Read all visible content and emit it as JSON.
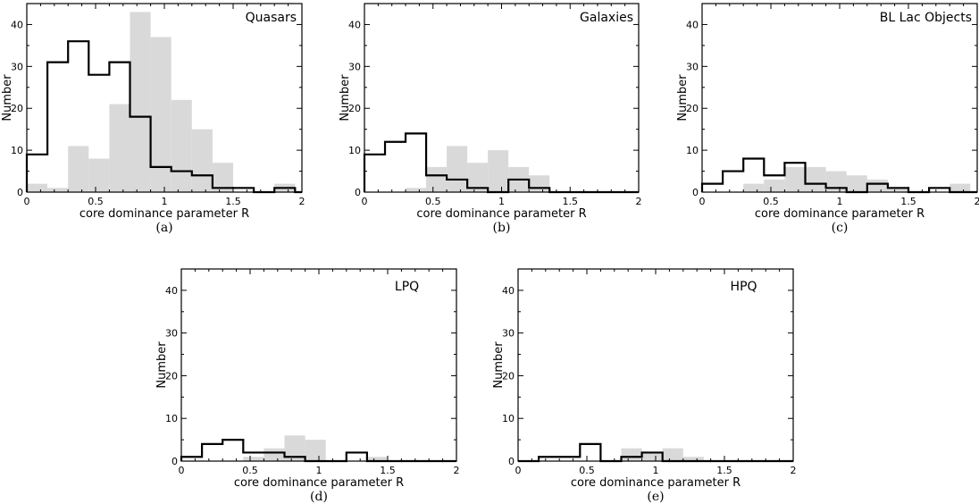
{
  "chart_data": [
    {
      "type": "bar",
      "title": "Quasars",
      "letter": "(a)",
      "xlabel": "core dominance parameter R",
      "ylabel": "Number",
      "xlim": [
        0,
        2
      ],
      "ylim": [
        0,
        45
      ],
      "xticks": [
        0,
        0.5,
        1,
        1.5,
        2
      ],
      "yticks": [
        0,
        10,
        20,
        30,
        40
      ],
      "bin_edges": [
        0,
        0.15,
        0.3,
        0.45,
        0.6,
        0.75,
        0.9,
        1.05,
        1.2,
        1.35,
        1.5,
        1.65,
        1.8,
        1.95,
        2
      ],
      "series": [
        {
          "style": "filled-gray",
          "values": [
            2,
            1,
            11,
            8,
            21,
            43,
            37,
            22,
            15,
            7,
            0,
            0,
            2,
            0
          ]
        },
        {
          "style": "black-step",
          "values": [
            9,
            31,
            36,
            28,
            31,
            18,
            6,
            5,
            4,
            1,
            1,
            0,
            1,
            0
          ]
        }
      ]
    },
    {
      "type": "bar",
      "title": "Galaxies",
      "letter": "(b)",
      "xlabel": "core dominance parameter R",
      "ylabel": "Number",
      "xlim": [
        0,
        2
      ],
      "ylim": [
        0,
        45
      ],
      "xticks": [
        0,
        0.5,
        1,
        1.5,
        2
      ],
      "yticks": [
        0,
        10,
        20,
        30,
        40
      ],
      "bin_edges": [
        0,
        0.15,
        0.3,
        0.45,
        0.6,
        0.75,
        0.9,
        1.05,
        1.2,
        1.35,
        1.5,
        1.65,
        1.8,
        1.95,
        2
      ],
      "series": [
        {
          "style": "filled-gray",
          "values": [
            0,
            0,
            1,
            6,
            11,
            7,
            10,
            6,
            4,
            0,
            0,
            0,
            0,
            0
          ]
        },
        {
          "style": "black-step",
          "values": [
            9,
            12,
            14,
            4,
            3,
            1,
            0,
            3,
            1,
            0,
            0,
            0,
            0,
            0
          ]
        }
      ]
    },
    {
      "type": "bar",
      "title": "BL Lac Objects",
      "letter": "(c)",
      "xlabel": "core dominance parameter R",
      "ylabel": "Number",
      "xlim": [
        0,
        2
      ],
      "ylim": [
        0,
        45
      ],
      "xticks": [
        0,
        0.5,
        1,
        1.5,
        2
      ],
      "yticks": [
        0,
        10,
        20,
        30,
        40
      ],
      "bin_edges": [
        0,
        0.15,
        0.3,
        0.45,
        0.6,
        0.75,
        0.9,
        1.05,
        1.2,
        1.35,
        1.5,
        1.65,
        1.8,
        1.95,
        2
      ],
      "series": [
        {
          "style": "filled-gray",
          "values": [
            0,
            0,
            2,
            3,
            6,
            6,
            5,
            4,
            3,
            1,
            0,
            0,
            2,
            0
          ]
        },
        {
          "style": "black-step",
          "values": [
            2,
            5,
            8,
            4,
            7,
            2,
            1,
            0,
            2,
            1,
            0,
            1,
            0,
            0
          ]
        }
      ]
    },
    {
      "type": "bar",
      "title": "LPQ",
      "letter": "(d)",
      "xlabel": "core dominance parameter R",
      "ylabel": "Number",
      "xlim": [
        0,
        2
      ],
      "ylim": [
        0,
        45
      ],
      "xticks": [
        0,
        0.5,
        1,
        1.5,
        2
      ],
      "yticks": [
        0,
        10,
        20,
        30,
        40
      ],
      "bin_edges": [
        0,
        0.15,
        0.3,
        0.45,
        0.6,
        0.75,
        0.9,
        1.05,
        1.2,
        1.35,
        1.5,
        1.65,
        1.8,
        1.95,
        2
      ],
      "series": [
        {
          "style": "filled-gray",
          "values": [
            0,
            0,
            0,
            1,
            3,
            6,
            5,
            0,
            0,
            1,
            0,
            0,
            0,
            0
          ]
        },
        {
          "style": "black-step",
          "values": [
            1,
            4,
            5,
            2,
            2,
            1,
            0,
            0,
            2,
            0,
            0,
            0,
            0,
            0
          ]
        }
      ]
    },
    {
      "type": "bar",
      "title": "HPQ",
      "letter": "(e)",
      "xlabel": "core dominance parameter R",
      "ylabel": "Number",
      "xlim": [
        0,
        2
      ],
      "ylim": [
        0,
        45
      ],
      "xticks": [
        0,
        0.5,
        1,
        1.5,
        2
      ],
      "yticks": [
        0,
        10,
        20,
        30,
        40
      ],
      "bin_edges": [
        0,
        0.15,
        0.3,
        0.45,
        0.6,
        0.75,
        0.9,
        1.05,
        1.2,
        1.35,
        1.5,
        1.65,
        1.8,
        1.95,
        2
      ],
      "series": [
        {
          "style": "filled-gray",
          "values": [
            0,
            0,
            0,
            0,
            0,
            3,
            2,
            3,
            1,
            0,
            0,
            0,
            0,
            0
          ]
        },
        {
          "style": "black-step",
          "values": [
            0,
            1,
            1,
            4,
            0,
            1,
            2,
            0,
            0,
            0,
            0,
            0,
            0,
            0
          ]
        }
      ]
    }
  ],
  "colors": {
    "gray_fill": "#d9d9d9",
    "step_line": "#000000"
  },
  "tick_format": {
    "0": "0",
    "0.5": "0.5",
    "1": "1",
    "1.5": "1.5",
    "2": "2"
  }
}
